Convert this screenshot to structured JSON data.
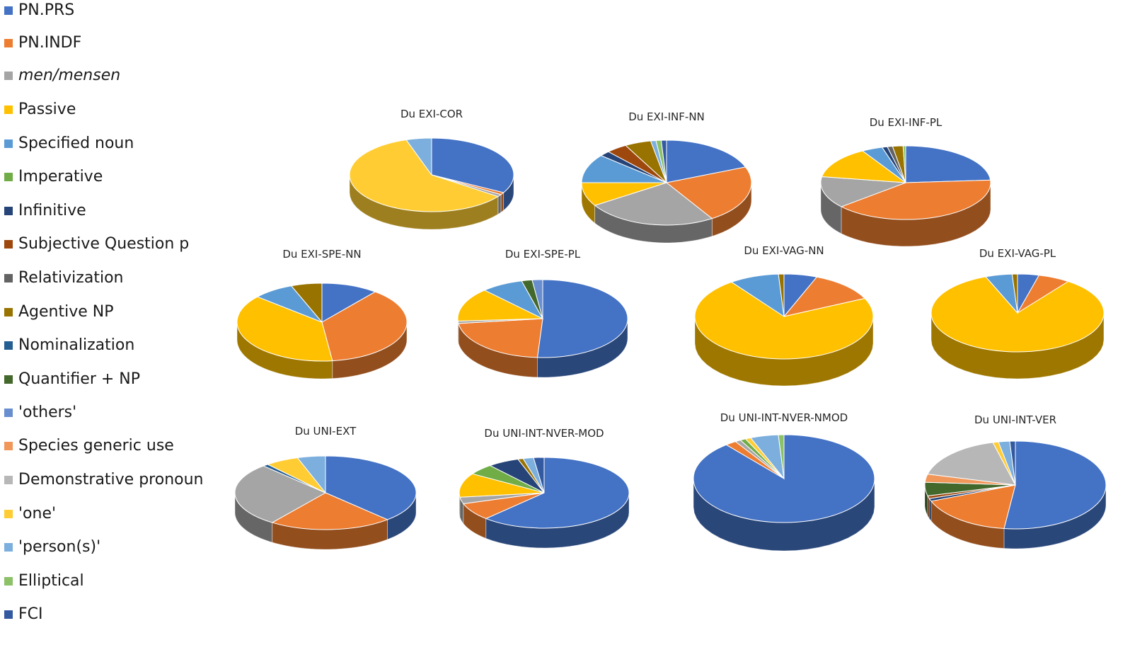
{
  "legend": {
    "items": [
      {
        "label": "PN.PRS",
        "color": "#4472C4"
      },
      {
        "label": "PN.INDF",
        "color": "#ED7D31"
      },
      {
        "label": "men/mensen",
        "color": "#A5A5A5",
        "italic": true
      },
      {
        "label": "Passive",
        "color": "#FFC000"
      },
      {
        "label": "Specified noun",
        "color": "#5B9BD5"
      },
      {
        "label": "Imperative",
        "color": "#70AD47"
      },
      {
        "label": "Infinitive",
        "color": "#264478"
      },
      {
        "label": "Subjective Question p",
        "color": "#9E480E"
      },
      {
        "label": "Relativization",
        "color": "#636363"
      },
      {
        "label": "Agentive NP",
        "color": "#997300"
      },
      {
        "label": "Nominalization",
        "color": "#255E91"
      },
      {
        "label": "Quantifier + NP",
        "color": "#43682B"
      },
      {
        "label": "'others'",
        "color": "#698ED0"
      },
      {
        "label": "Species generic use",
        "color": "#F1975A"
      },
      {
        "label": "Demonstrative pronoun",
        "color": "#B7B7B7"
      },
      {
        "label": "'one'",
        "color": "#FFCD33"
      },
      {
        "label": "'person(s)'",
        "color": "#7CAFDD"
      },
      {
        "label": "Elliptical",
        "color": "#8CC168"
      },
      {
        "label": "FCI",
        "color": "#335AA1"
      }
    ]
  },
  "chart_data": [
    {
      "type": "pie",
      "title": "Du EXI-COR",
      "values": [
        33,
        1,
        1,
        0,
        0,
        0,
        0,
        0,
        0,
        0,
        0,
        0,
        0,
        0,
        0,
        60,
        5,
        0,
        0
      ]
    },
    {
      "type": "pie",
      "title": "Du EXI-INF-NN",
      "values": [
        19,
        22,
        25,
        9,
        11,
        0,
        2,
        4,
        0,
        5,
        0,
        0,
        0,
        0,
        0,
        0,
        1,
        1,
        1
      ]
    },
    {
      "type": "pie",
      "title": "Du EXI-INF-PL",
      "values": [
        24,
        40,
        14,
        14,
        4,
        0,
        1,
        0,
        1,
        2,
        0,
        0,
        0,
        0,
        0,
        0,
        0,
        0.5,
        0
      ]
    },
    {
      "type": "pie",
      "title": "Du EXI-SPE-NN",
      "values": [
        11,
        38,
        0,
        39,
        8,
        0,
        0,
        0,
        0,
        6,
        0,
        0,
        0,
        0,
        0,
        0,
        0,
        0,
        0
      ]
    },
    {
      "type": "pie",
      "title": "Du EXI-SPE-PL",
      "values": [
        51,
        22,
        1,
        14,
        8,
        0,
        0,
        0,
        0,
        0,
        0,
        2,
        2,
        0,
        0,
        0,
        0,
        0,
        0
      ]
    },
    {
      "type": "pie",
      "title": "Du EXI-VAG-NN",
      "values": [
        6,
        12,
        0,
        72,
        9,
        0,
        0,
        0,
        0,
        1,
        0,
        0,
        0,
        0,
        0,
        0,
        0,
        0,
        0
      ]
    },
    {
      "type": "pie",
      "title": "Du EXI-VAG-PL",
      "values": [
        4,
        6,
        0,
        84,
        5,
        0,
        0,
        0,
        0,
        1,
        0,
        0,
        0,
        0,
        0,
        0,
        0,
        0,
        0
      ]
    },
    {
      "type": "pie",
      "title": "Du UNI-EXT",
      "values": [
        38,
        22,
        28,
        0,
        0,
        0,
        0,
        0,
        0,
        0,
        1,
        0,
        0,
        0,
        0,
        6,
        5,
        0,
        0
      ]
    },
    {
      "type": "pie",
      "title": "Du UNI-INT-NVER-MOD",
      "values": [
        62,
        8,
        3,
        11,
        0,
        5,
        6,
        0,
        0,
        1,
        0,
        0,
        0,
        0,
        0,
        0,
        2,
        0,
        2
      ]
    },
    {
      "type": "pie",
      "title": "Du UNI-INT-NVER-NMOD",
      "values": [
        89,
        2,
        1,
        0,
        0,
        1,
        0,
        0,
        0,
        0,
        0,
        0,
        0,
        0,
        0,
        1,
        5,
        1,
        0
      ]
    },
    {
      "type": "pie",
      "title": "Du UNI-INT-VER",
      "values": [
        52,
        17,
        0,
        0,
        0,
        0,
        1,
        1,
        0,
        0,
        0,
        5,
        0,
        3,
        17,
        1,
        2,
        0,
        1
      ]
    }
  ]
}
